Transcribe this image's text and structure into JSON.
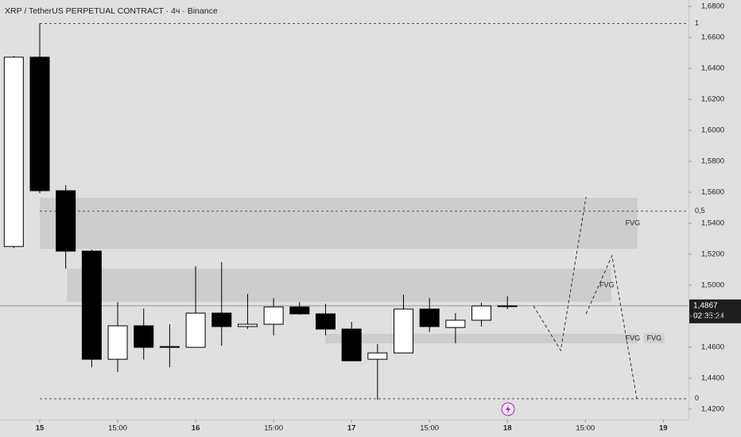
{
  "chart_data": {
    "type": "candlestick",
    "title": "XRP / TetherUS PERPETUAL CONTRACT · 4ч · Binance",
    "x": [
      -4,
      0,
      4,
      8,
      12,
      16,
      20,
      24,
      28,
      32,
      36,
      40,
      44,
      48,
      52,
      56,
      60,
      64,
      68,
      72
    ],
    "open": [
      1.525,
      1.6472,
      1.561,
      1.522,
      1.4522,
      1.4738,
      1.4599,
      1.4599,
      1.482,
      1.4733,
      1.4748,
      1.486,
      1.4815,
      1.4717,
      1.4522,
      1.4563,
      1.4846,
      1.4727,
      1.4774,
      1.4866
    ],
    "high": [
      1.648,
      1.669,
      1.5646,
      1.523,
      1.489,
      1.485,
      1.4748,
      1.5122,
      1.5148,
      1.4943,
      1.4917,
      1.489,
      1.488,
      1.4763,
      1.462,
      1.4938,
      1.4917,
      1.482,
      1.4887,
      1.4928
    ],
    "low": [
      1.524,
      1.5595,
      1.5107,
      1.447,
      1.444,
      1.452,
      1.447,
      1.4599,
      1.461,
      1.4718,
      1.4676,
      1.481,
      1.4676,
      1.451,
      1.426,
      1.4563,
      1.4697,
      1.4625,
      1.4733,
      1.4846
    ],
    "close": [
      1.6472,
      1.561,
      1.522,
      1.4522,
      1.4738,
      1.4599,
      1.4604,
      1.482,
      1.4733,
      1.4748,
      1.486,
      1.4815,
      1.4717,
      1.4512,
      1.4563,
      1.4846,
      1.4733,
      1.4774,
      1.4866,
      1.4867
    ],
    "up_color": "#ffffff",
    "down_color": "#000000",
    "xlim": [
      -6.12,
      99.88
    ],
    "xticks": [
      {
        "value": 0,
        "label": "15"
      },
      {
        "value": 12,
        "label": "15:00"
      },
      {
        "value": 24,
        "label": "16"
      },
      {
        "value": 36,
        "label": "15:00"
      },
      {
        "value": 48,
        "label": "17"
      },
      {
        "value": 60,
        "label": "15:00"
      },
      {
        "value": 72,
        "label": "18"
      },
      {
        "value": 84,
        "label": "15:00"
      },
      {
        "value": 96,
        "label": "19"
      }
    ],
    "ylim": [
      1.4133,
      1.6841
    ],
    "yticks": [
      {
        "value": 1.68,
        "label": "1,6800"
      },
      {
        "value": 1.66,
        "label": "1,6600"
      },
      {
        "value": 1.64,
        "label": "1,6400"
      },
      {
        "value": 1.62,
        "label": "1,6200"
      },
      {
        "value": 1.6,
        "label": "1,6000"
      },
      {
        "value": 1.58,
        "label": "1,5800"
      },
      {
        "value": 1.56,
        "label": "1,5600"
      },
      {
        "value": 1.54,
        "label": "1,5400"
      },
      {
        "value": 1.52,
        "label": "1,5200"
      },
      {
        "value": 1.5,
        "label": "1,5000"
      },
      {
        "value": 1.48,
        "label": "1,4800"
      },
      {
        "value": 1.46,
        "label": "1,4600"
      },
      {
        "value": 1.44,
        "label": "1,4400"
      },
      {
        "value": 1.42,
        "label": "1,4200"
      }
    ],
    "fib_levels": [
      {
        "value": 1.669,
        "label": "1"
      },
      {
        "value": 1.5478,
        "label": "0,5"
      },
      {
        "value": 1.4267,
        "label": "0"
      }
    ],
    "fib_start": 0,
    "zones": [
      {
        "label": "FVG",
        "x": [
          0,
          92
        ],
        "y": [
          1.5235,
          1.5564
        ]
      },
      {
        "label": "FVG",
        "x": [
          4.2,
          88
        ],
        "y": [
          1.4892,
          1.5107
        ]
      },
      {
        "label": "FVG",
        "x": [
          44,
          92
        ],
        "y": [
          1.4625,
          1.4686
        ]
      }
    ],
    "zone_tag": "FVG",
    "projection": {
      "x": [
        76,
        80.2,
        84.1,
        null,
        84.1,
        88.1,
        92
      ],
      "values": [
        1.4867,
        1.4579,
        1.5569,
        null,
        1.4815,
        1.519,
        1.425
      ]
    },
    "last_price": {
      "value": 1.4867,
      "label": "1,4867"
    },
    "countdown": "02:35:24"
  }
}
